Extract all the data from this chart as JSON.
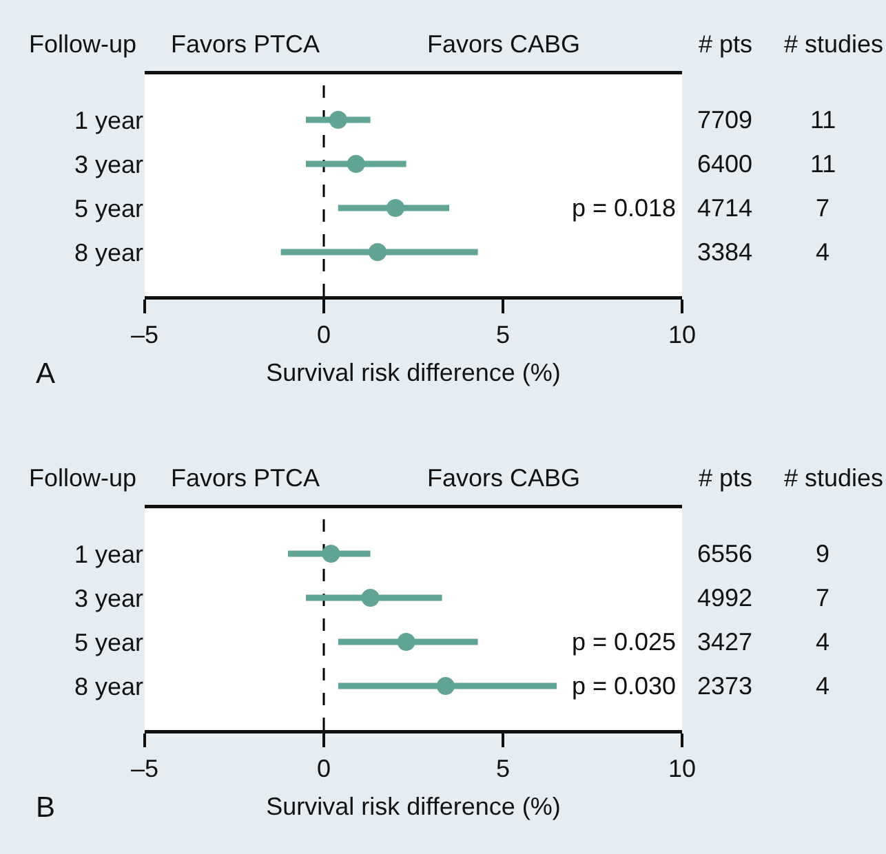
{
  "chart_data": [
    {
      "type": "scatter",
      "orientation": "horizontal",
      "categories": [
        "1 year",
        "3 year",
        "5 year",
        "8 year"
      ],
      "values": [
        0.4,
        0.9,
        2.0,
        1.5
      ],
      "errors": [
        [
          -0.5,
          1.3
        ],
        [
          -0.5,
          2.3
        ],
        [
          0.4,
          3.5
        ],
        [
          -1.2,
          4.3
        ]
      ],
      "color": "#5fa494",
      "marker": "circle",
      "xlabel": "Survival risk difference (%)",
      "xlim": [
        -5,
        10
      ],
      "xticks": [
        {
          "value": -5,
          "label": "–5"
        },
        0,
        5,
        10
      ],
      "ref_lines": [
        {
          "axis": "x",
          "value": 0,
          "color": "#000000",
          "line_style": "dashed"
        }
      ],
      "annotations": [
        "Follow-up",
        "Favors PTCA",
        "Favors CABG",
        "# pts",
        "# studies",
        "7709",
        "11",
        "6400",
        "11",
        "4714",
        "7",
        "3384",
        "4",
        "p = 0.018",
        "A"
      ]
    },
    {
      "type": "scatter",
      "orientation": "horizontal",
      "categories": [
        "1 year",
        "3 year",
        "5 year",
        "8 year"
      ],
      "values": [
        0.2,
        1.3,
        2.3,
        3.4
      ],
      "errors": [
        [
          -1.0,
          1.3
        ],
        [
          -0.5,
          3.3
        ],
        [
          0.4,
          4.3
        ],
        [
          0.4,
          6.5
        ]
      ],
      "color": "#5fa494",
      "marker": "circle",
      "xlabel": "Survival risk difference (%)",
      "xlim": [
        -5,
        10
      ],
      "xticks": [
        {
          "value": -5,
          "label": "–5"
        },
        0,
        5,
        10
      ],
      "ref_lines": [
        {
          "axis": "x",
          "value": 0,
          "color": "#000000",
          "line_style": "dashed"
        }
      ],
      "annotations": [
        "Follow-up",
        "Favors PTCA",
        "Favors CABG",
        "# pts",
        "# studies",
        "6556",
        "9",
        "4992",
        "7",
        "3427",
        "4",
        "2373",
        "4",
        "p = 0.025",
        "p = 0.030",
        "B"
      ]
    }
  ]
}
